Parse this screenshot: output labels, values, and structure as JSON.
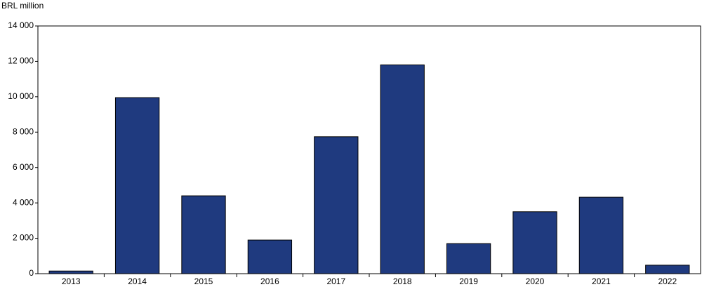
{
  "chart_data": {
    "type": "bar",
    "y_label": "BRL million",
    "categories": [
      "2013",
      "2014",
      "2015",
      "2016",
      "2017",
      "2018",
      "2019",
      "2020",
      "2021",
      "2022"
    ],
    "values": [
      150,
      9950,
      4400,
      1900,
      7740,
      11800,
      1700,
      3500,
      4320,
      480
    ],
    "color": "#1f3a7f",
    "ylim": [
      0,
      14000
    ],
    "yticks": [
      0,
      {
        "value": 2000,
        "label": "2 000"
      },
      {
        "value": 4000,
        "label": "4 000"
      },
      {
        "value": 6000,
        "label": "6 000"
      },
      {
        "value": 8000,
        "label": "8 000"
      },
      {
        "value": 10000,
        "label": "10 000"
      },
      {
        "value": 12000,
        "label": "12 000"
      },
      {
        "value": 14000,
        "label": "14 000"
      }
    ],
    "grid": false
  }
}
